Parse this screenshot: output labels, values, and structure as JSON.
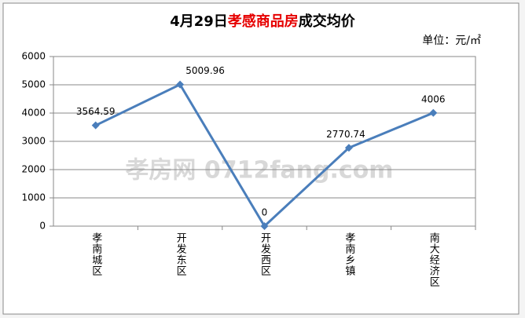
{
  "chart_data": {
    "type": "line",
    "title": [
      "4月29日",
      "孝感商品房",
      "成交均价"
    ],
    "title_colors": [
      "#000000",
      "#e60000",
      "#000000"
    ],
    "unit_label": "单位：元/㎡",
    "watermark": "孝房网 0712fang.com",
    "categories": [
      "孝南城区",
      "开发东区",
      "开发西区",
      "孝南乡镇",
      "南大经济区"
    ],
    "series": [
      {
        "name": "成交均价",
        "color": "#4a7ebb",
        "values": [
          3564.59,
          5009.96,
          0,
          2770.74,
          4006
        ]
      }
    ],
    "ylim": [
      0,
      6000
    ],
    "yticks": [
      0,
      1000,
      2000,
      3000,
      4000,
      5000,
      6000
    ],
    "grid": true,
    "legend": false
  }
}
